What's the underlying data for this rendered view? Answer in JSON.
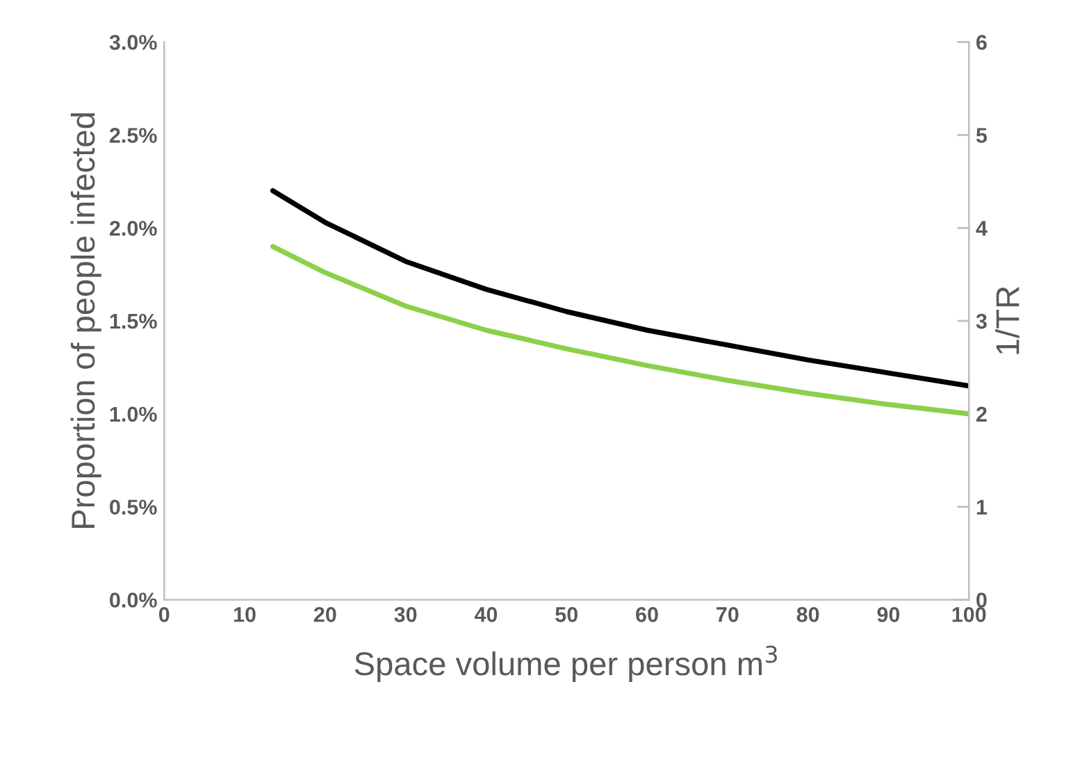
{
  "chart_data": {
    "type": "line",
    "xlabel": "Space volume per person m$^{3}$",
    "ylabel": "Proportion of people infected",
    "y2label": "1/TR",
    "xlim": [
      0,
      100
    ],
    "xticks": [
      0,
      10,
      20,
      30,
      40,
      50,
      60,
      70,
      80,
      90,
      100
    ],
    "ylim": [
      0,
      3
    ],
    "yticks": [
      {
        "value": 0,
        "label": "0.0%"
      },
      {
        "value": 0.5,
        "label": "0.5%"
      },
      {
        "value": 1,
        "label": "1.0%"
      },
      {
        "value": 1.5,
        "label": "1.5%"
      },
      {
        "value": 2,
        "label": "2.0%"
      },
      {
        "value": 2.5,
        "label": "2.5%"
      },
      {
        "value": 3,
        "label": "3.0%"
      }
    ],
    "y2lim": [
      0,
      6
    ],
    "y2ticks": [
      0,
      1,
      2,
      3,
      4,
      5,
      6
    ],
    "grid": false,
    "legend": false,
    "marker": "none",
    "line_style": "solid",
    "series": [
      {
        "color": "#000000",
        "x": [
          13.5,
          20,
          30,
          40,
          50,
          60,
          70,
          80,
          90,
          100
        ],
        "values": [
          2.2,
          2.03,
          1.82,
          1.67,
          1.55,
          1.45,
          1.37,
          1.29,
          1.22,
          1.15
        ]
      },
      {
        "color": "#8cd04a",
        "axis": "y2",
        "x": [
          13.5,
          20,
          30,
          40,
          50,
          60,
          70,
          80,
          90,
          100
        ],
        "values": [
          3.8,
          3.52,
          3.16,
          2.9,
          2.7,
          2.52,
          2.36,
          2.22,
          2.1,
          2.0
        ]
      }
    ]
  }
}
